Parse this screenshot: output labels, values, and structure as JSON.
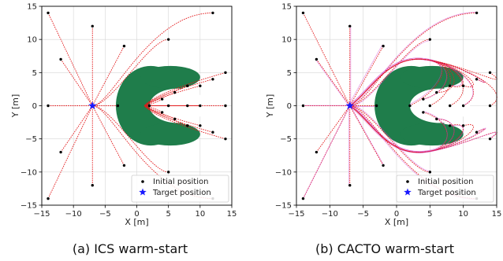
{
  "chart_data": [
    {
      "type": "scatter",
      "caption": "(a) ICS warm-start",
      "xlabel": "X [m]",
      "ylabel": "Y [m]",
      "xlim": [
        -15,
        15
      ],
      "ylim": [
        -15,
        15
      ],
      "xticks": [
        -15,
        -10,
        -5,
        0,
        5,
        10,
        15
      ],
      "yticks": [
        -15,
        -10,
        -5,
        0,
        5,
        10,
        15
      ],
      "grid": true,
      "legend_position": "lower-right",
      "legend": [
        {
          "label": "Initial position",
          "marker": "dot",
          "color": "#000000"
        },
        {
          "label": "Target position",
          "marker": "star",
          "color": "#1a1aff"
        }
      ],
      "target": {
        "x": -7,
        "y": 0
      },
      "obstacle_color": "#1f7d4b",
      "trajectory_color": "#e31a1c",
      "initial_positions": [
        {
          "x": -14,
          "y": 14
        },
        {
          "x": -7,
          "y": 12
        },
        {
          "x": -2,
          "y": 9
        },
        {
          "x": 5,
          "y": 10
        },
        {
          "x": 12,
          "y": 14
        },
        {
          "x": -12,
          "y": 7
        },
        {
          "x": 10,
          "y": 3
        },
        {
          "x": 12,
          "y": 4
        },
        {
          "x": 14,
          "y": 5
        },
        {
          "x": 8,
          "y": 3
        },
        {
          "x": 6,
          "y": 2
        },
        {
          "x": 4,
          "y": 1
        },
        {
          "x": -14,
          "y": 0
        },
        {
          "x": -3,
          "y": 0
        },
        {
          "x": 2,
          "y": 0
        },
        {
          "x": 5,
          "y": 0
        },
        {
          "x": 8,
          "y": 0
        },
        {
          "x": 10,
          "y": 0
        },
        {
          "x": 14,
          "y": 0
        },
        {
          "x": 4,
          "y": -1
        },
        {
          "x": 6,
          "y": -2
        },
        {
          "x": 8,
          "y": -3
        },
        {
          "x": 10,
          "y": -3
        },
        {
          "x": 12,
          "y": -4
        },
        {
          "x": 14,
          "y": -5
        },
        {
          "x": -12,
          "y": -7
        },
        {
          "x": -2,
          "y": -9
        },
        {
          "x": 5,
          "y": -10
        },
        {
          "x": -7,
          "y": -12
        },
        {
          "x": -14,
          "y": -14
        },
        {
          "x": 12,
          "y": -14
        }
      ]
    },
    {
      "type": "scatter",
      "caption": "(b) CACTO warm-start",
      "xlabel": "X [m]",
      "ylabel": "Y [m]",
      "xlim": [
        -15,
        15
      ],
      "ylim": [
        -15,
        15
      ],
      "xticks": [
        -15,
        -10,
        -5,
        0,
        5,
        10,
        15
      ],
      "yticks": [
        -15,
        -10,
        -5,
        0,
        5,
        10,
        15
      ],
      "grid": true,
      "legend_position": "lower-right",
      "legend": [
        {
          "label": "Initial position",
          "marker": "dot",
          "color": "#000000"
        },
        {
          "label": "Target position",
          "marker": "star",
          "color": "#1a1aff"
        }
      ],
      "target": {
        "x": -7,
        "y": 0
      },
      "obstacle_color": "#1f7d4b",
      "trajectory_color": "#e31a1c",
      "secondary_trajectory_color": "#d040d0",
      "initial_positions": [
        {
          "x": -14,
          "y": 14
        },
        {
          "x": -7,
          "y": 12
        },
        {
          "x": -2,
          "y": 9
        },
        {
          "x": 5,
          "y": 10
        },
        {
          "x": 12,
          "y": 14
        },
        {
          "x": -12,
          "y": 7
        },
        {
          "x": 10,
          "y": 3
        },
        {
          "x": 12,
          "y": 4
        },
        {
          "x": 14,
          "y": 5
        },
        {
          "x": 8,
          "y": 3
        },
        {
          "x": 6,
          "y": 2
        },
        {
          "x": 4,
          "y": 1
        },
        {
          "x": -14,
          "y": 0
        },
        {
          "x": -3,
          "y": 0
        },
        {
          "x": 2,
          "y": 0
        },
        {
          "x": 5,
          "y": 0
        },
        {
          "x": 8,
          "y": 0
        },
        {
          "x": 10,
          "y": 0
        },
        {
          "x": 14,
          "y": 0
        },
        {
          "x": 4,
          "y": -1
        },
        {
          "x": 6,
          "y": -2
        },
        {
          "x": 8,
          "y": -3
        },
        {
          "x": 10,
          "y": -3
        },
        {
          "x": 12,
          "y": -4
        },
        {
          "x": 14,
          "y": -5
        },
        {
          "x": -12,
          "y": -7
        },
        {
          "x": -2,
          "y": -9
        },
        {
          "x": 5,
          "y": -10
        },
        {
          "x": -7,
          "y": -12
        },
        {
          "x": -14,
          "y": -14
        },
        {
          "x": 12,
          "y": -14
        }
      ]
    }
  ]
}
